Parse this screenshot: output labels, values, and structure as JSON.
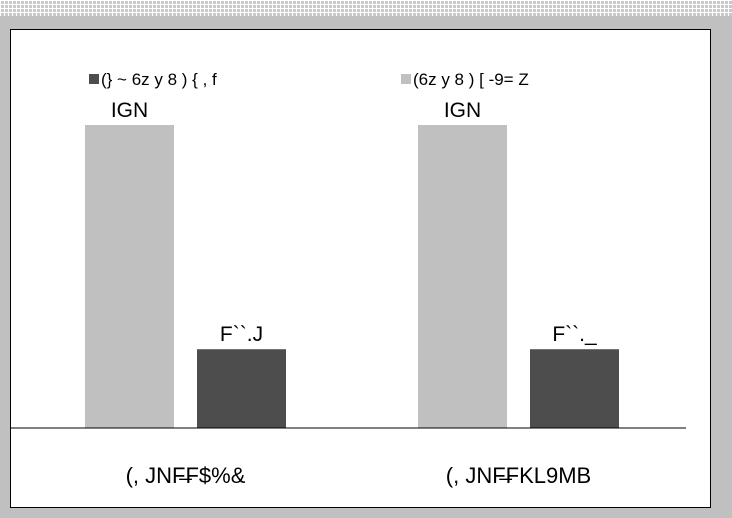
{
  "chart_data": {
    "type": "bar",
    "title": "",
    "xlabel": "",
    "ylabel": "",
    "ylim": [
      0,
      100
    ],
    "grid": false,
    "legend_position": "top",
    "categories": [
      "(, JNF̶F$%&",
      "(, JNF̶FKL9MB"
    ],
    "series": [
      {
        "name": "(} ~ 6z  y 8  )    { , f",
        "color": "#4d4d4d",
        "values": [
          26,
          26
        ],
        "labels": [
          "F``.J",
          "F``._"
        ]
      },
      {
        "name": "(6z  y 8  ) [ -9=   Z",
        "color": "#c0c0c0",
        "values": [
          100,
          100
        ],
        "labels": [
          "IGN",
          "IGN"
        ]
      }
    ]
  }
}
